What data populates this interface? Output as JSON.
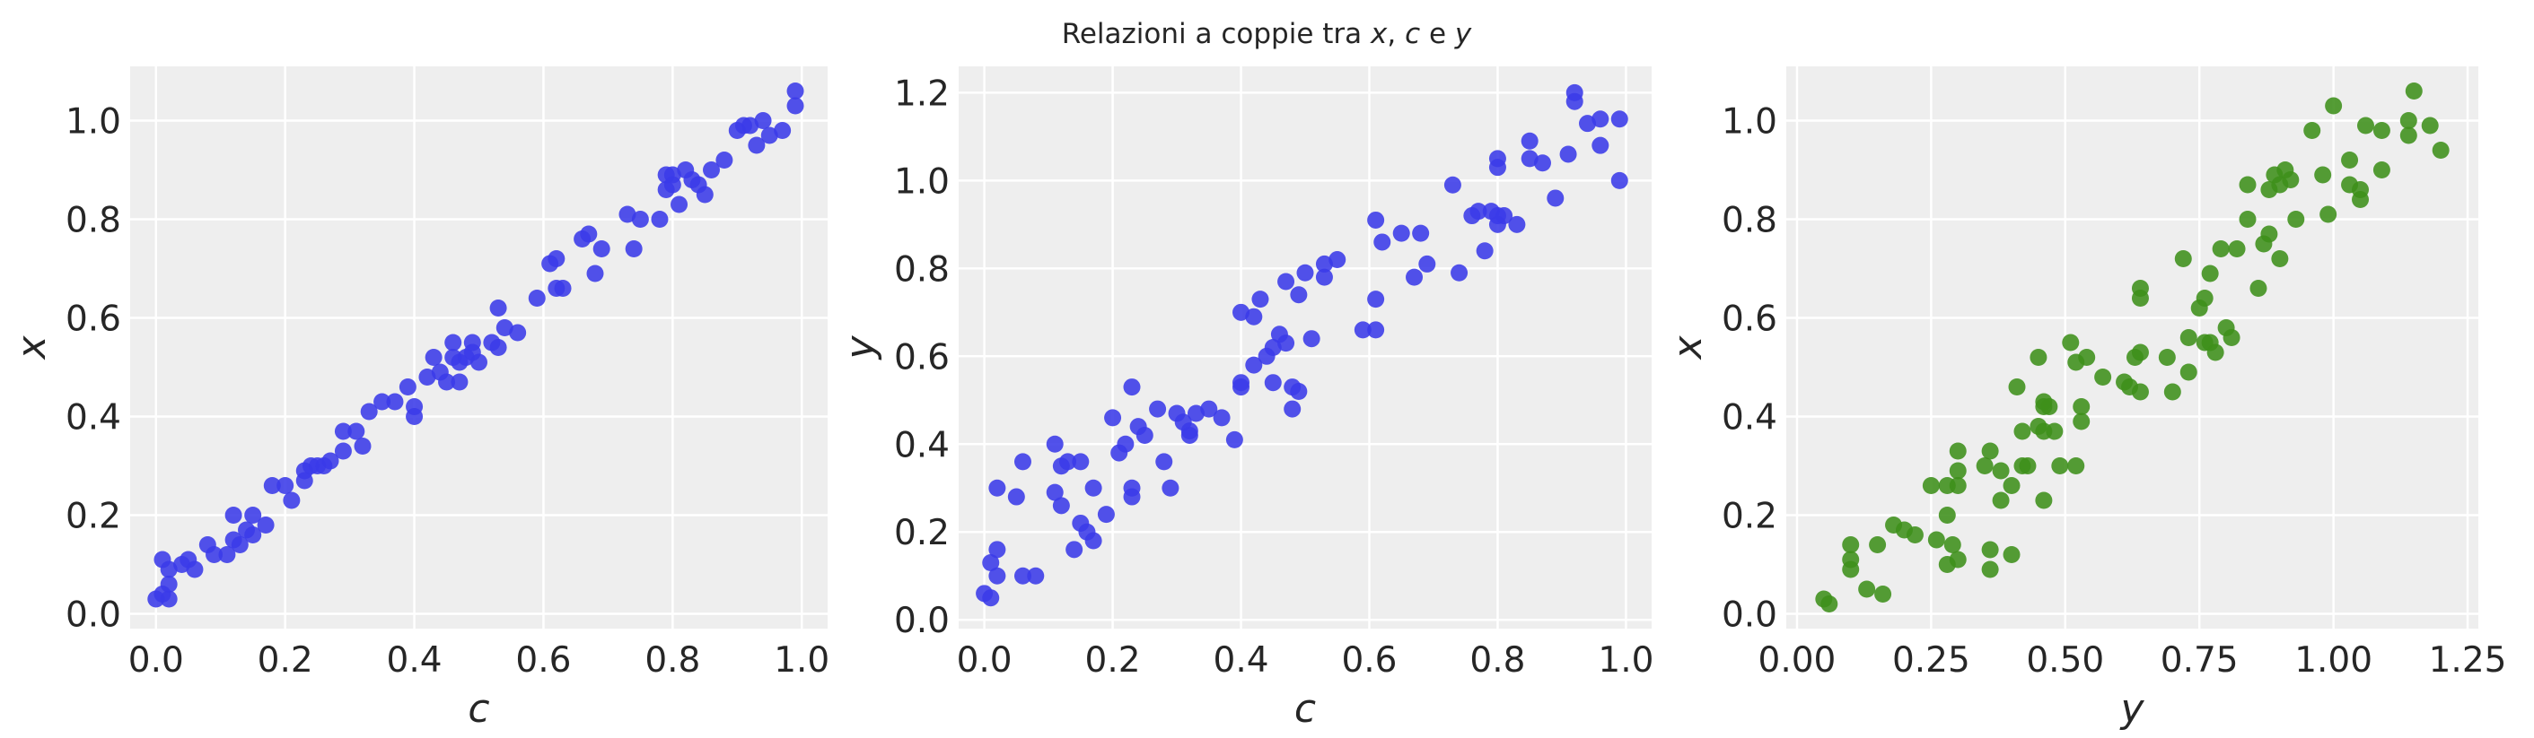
{
  "title": "Relazioni a coppie tra x, c e y",
  "title_parts": [
    "Relazioni a coppie tra ",
    "x",
    ", ",
    "c",
    " e ",
    "y"
  ],
  "colors": {
    "blue": "#3a3ae8",
    "green": "#3e8f1a",
    "panel_bg": "#eeeeee",
    "grid": "#ffffff"
  },
  "chart_data": [
    {
      "type": "scatter",
      "xlabel": "c",
      "ylabel": "x",
      "xlim": [
        -0.04,
        1.04
      ],
      "ylim": [
        -0.03,
        1.11
      ],
      "xticks": [
        0.0,
        0.2,
        0.4,
        0.6,
        0.8,
        1.0
      ],
      "xtick_labels": [
        "0.0",
        "0.2",
        "0.4",
        "0.6",
        "0.8",
        "1.0"
      ],
      "yticks": [
        0.0,
        0.2,
        0.4,
        0.6,
        0.8,
        1.0
      ],
      "ytick_labels": [
        "0.0",
        "0.2",
        "0.4",
        "0.6",
        "0.8",
        "1.0"
      ],
      "grid": true,
      "color": "#3a3ae8",
      "points": [
        [
          0.0,
          0.03
        ],
        [
          0.01,
          0.04
        ],
        [
          0.01,
          0.11
        ],
        [
          0.02,
          0.03
        ],
        [
          0.02,
          0.09
        ],
        [
          0.04,
          0.1
        ],
        [
          0.05,
          0.11
        ],
        [
          0.06,
          0.09
        ],
        [
          0.08,
          0.14
        ],
        [
          0.11,
          0.12
        ],
        [
          0.12,
          0.15
        ],
        [
          0.12,
          0.2
        ],
        [
          0.13,
          0.14
        ],
        [
          0.14,
          0.17
        ],
        [
          0.15,
          0.2
        ],
        [
          0.15,
          0.16
        ],
        [
          0.17,
          0.18
        ],
        [
          0.18,
          0.26
        ],
        [
          0.2,
          0.26
        ],
        [
          0.21,
          0.23
        ],
        [
          0.23,
          0.29
        ],
        [
          0.23,
          0.27
        ],
        [
          0.24,
          0.3
        ],
        [
          0.25,
          0.3
        ],
        [
          0.27,
          0.31
        ],
        [
          0.29,
          0.33
        ],
        [
          0.29,
          0.37
        ],
        [
          0.31,
          0.37
        ],
        [
          0.32,
          0.34
        ],
        [
          0.33,
          0.41
        ],
        [
          0.35,
          0.43
        ],
        [
          0.37,
          0.43
        ],
        [
          0.39,
          0.46
        ],
        [
          0.4,
          0.4
        ],
        [
          0.4,
          0.42
        ],
        [
          0.42,
          0.48
        ],
        [
          0.43,
          0.52
        ],
        [
          0.44,
          0.49
        ],
        [
          0.45,
          0.47
        ],
        [
          0.46,
          0.52
        ],
        [
          0.46,
          0.55
        ],
        [
          0.47,
          0.47
        ],
        [
          0.48,
          0.52
        ],
        [
          0.49,
          0.55
        ],
        [
          0.49,
          0.53
        ],
        [
          0.5,
          0.51
        ],
        [
          0.52,
          0.55
        ],
        [
          0.53,
          0.62
        ],
        [
          0.53,
          0.54
        ],
        [
          0.54,
          0.58
        ],
        [
          0.56,
          0.57
        ],
        [
          0.59,
          0.64
        ],
        [
          0.61,
          0.71
        ],
        [
          0.62,
          0.66
        ],
        [
          0.62,
          0.72
        ],
        [
          0.63,
          0.66
        ],
        [
          0.66,
          0.76
        ],
        [
          0.67,
          0.77
        ],
        [
          0.68,
          0.69
        ],
        [
          0.69,
          0.74
        ],
        [
          0.73,
          0.81
        ],
        [
          0.74,
          0.74
        ],
        [
          0.75,
          0.8
        ],
        [
          0.78,
          0.8
        ],
        [
          0.79,
          0.86
        ],
        [
          0.8,
          0.87
        ],
        [
          0.8,
          0.89
        ],
        [
          0.81,
          0.83
        ],
        [
          0.82,
          0.9
        ],
        [
          0.83,
          0.88
        ],
        [
          0.84,
          0.87
        ],
        [
          0.85,
          0.85
        ],
        [
          0.86,
          0.9
        ],
        [
          0.88,
          0.92
        ],
        [
          0.9,
          0.98
        ],
        [
          0.91,
          0.99
        ],
        [
          0.93,
          0.95
        ],
        [
          0.94,
          1.0
        ],
        [
          0.95,
          0.97
        ],
        [
          0.97,
          0.98
        ],
        [
          0.99,
          1.06
        ],
        [
          0.99,
          1.03
        ],
        [
          0.92,
          0.99
        ],
        [
          0.79,
          0.89
        ],
        [
          0.47,
          0.51
        ],
        [
          0.26,
          0.3
        ],
        [
          0.09,
          0.12
        ],
        [
          0.02,
          0.06
        ]
      ]
    },
    {
      "type": "scatter",
      "xlabel": "c",
      "ylabel": "y",
      "xlim": [
        -0.04,
        1.04
      ],
      "ylim": [
        -0.02,
        1.26
      ],
      "xticks": [
        0.0,
        0.2,
        0.4,
        0.6,
        0.8,
        1.0
      ],
      "xtick_labels": [
        "0.0",
        "0.2",
        "0.4",
        "0.6",
        "0.8",
        "1.0"
      ],
      "yticks": [
        0.0,
        0.2,
        0.4,
        0.6,
        0.8,
        1.0,
        1.2
      ],
      "ytick_labels": [
        "0.0",
        "0.2",
        "0.4",
        "0.6",
        "0.8",
        "1.0",
        "1.2"
      ],
      "grid": true,
      "color": "#3a3ae8",
      "points": [
        [
          0.0,
          0.06
        ],
        [
          0.01,
          0.05
        ],
        [
          0.01,
          0.13
        ],
        [
          0.02,
          0.1
        ],
        [
          0.02,
          0.16
        ],
        [
          0.02,
          0.3
        ],
        [
          0.05,
          0.28
        ],
        [
          0.06,
          0.1
        ],
        [
          0.06,
          0.36
        ],
        [
          0.08,
          0.1
        ],
        [
          0.11,
          0.4
        ],
        [
          0.11,
          0.29
        ],
        [
          0.12,
          0.26
        ],
        [
          0.12,
          0.35
        ],
        [
          0.14,
          0.16
        ],
        [
          0.15,
          0.22
        ],
        [
          0.15,
          0.36
        ],
        [
          0.16,
          0.2
        ],
        [
          0.17,
          0.3
        ],
        [
          0.17,
          0.18
        ],
        [
          0.19,
          0.24
        ],
        [
          0.2,
          0.46
        ],
        [
          0.21,
          0.38
        ],
        [
          0.22,
          0.4
        ],
        [
          0.23,
          0.28
        ],
        [
          0.23,
          0.53
        ],
        [
          0.23,
          0.3
        ],
        [
          0.24,
          0.44
        ],
        [
          0.25,
          0.42
        ],
        [
          0.27,
          0.48
        ],
        [
          0.28,
          0.36
        ],
        [
          0.29,
          0.3
        ],
        [
          0.3,
          0.47
        ],
        [
          0.31,
          0.45
        ],
        [
          0.32,
          0.42
        ],
        [
          0.32,
          0.43
        ],
        [
          0.33,
          0.47
        ],
        [
          0.35,
          0.48
        ],
        [
          0.37,
          0.46
        ],
        [
          0.39,
          0.41
        ],
        [
          0.4,
          0.54
        ],
        [
          0.4,
          0.53
        ],
        [
          0.4,
          0.7
        ],
        [
          0.42,
          0.58
        ],
        [
          0.42,
          0.69
        ],
        [
          0.43,
          0.73
        ],
        [
          0.44,
          0.6
        ],
        [
          0.45,
          0.54
        ],
        [
          0.45,
          0.62
        ],
        [
          0.46,
          0.65
        ],
        [
          0.47,
          0.77
        ],
        [
          0.48,
          0.53
        ],
        [
          0.48,
          0.48
        ],
        [
          0.49,
          0.52
        ],
        [
          0.49,
          0.74
        ],
        [
          0.5,
          0.79
        ],
        [
          0.51,
          0.64
        ],
        [
          0.53,
          0.78
        ],
        [
          0.53,
          0.81
        ],
        [
          0.55,
          0.82
        ],
        [
          0.59,
          0.66
        ],
        [
          0.61,
          0.66
        ],
        [
          0.61,
          0.73
        ],
        [
          0.61,
          0.91
        ],
        [
          0.62,
          0.86
        ],
        [
          0.65,
          0.88
        ],
        [
          0.67,
          0.78
        ],
        [
          0.68,
          0.88
        ],
        [
          0.69,
          0.81
        ],
        [
          0.73,
          0.99
        ],
        [
          0.74,
          0.79
        ],
        [
          0.76,
          0.92
        ],
        [
          0.77,
          0.93
        ],
        [
          0.78,
          0.84
        ],
        [
          0.79,
          0.93
        ],
        [
          0.8,
          1.03
        ],
        [
          0.8,
          0.92
        ],
        [
          0.8,
          0.9
        ],
        [
          0.81,
          0.92
        ],
        [
          0.83,
          0.9
        ],
        [
          0.85,
          1.09
        ],
        [
          0.85,
          1.05
        ],
        [
          0.87,
          1.04
        ],
        [
          0.89,
          0.96
        ],
        [
          0.91,
          1.06
        ],
        [
          0.92,
          1.2
        ],
        [
          0.92,
          1.18
        ],
        [
          0.94,
          1.13
        ],
        [
          0.96,
          1.08
        ],
        [
          0.96,
          1.14
        ],
        [
          0.99,
          1.0
        ],
        [
          0.99,
          1.14
        ],
        [
          0.8,
          1.05
        ],
        [
          0.47,
          0.63
        ],
        [
          0.13,
          0.36
        ]
      ]
    },
    {
      "type": "scatter",
      "xlabel": "y",
      "ylabel": "x",
      "xlim": [
        -0.02,
        1.27
      ],
      "ylim": [
        -0.03,
        1.11
      ],
      "xticks": [
        0.0,
        0.25,
        0.5,
        0.75,
        1.0,
        1.25
      ],
      "xtick_labels": [
        "0.00",
        "0.25",
        "0.50",
        "0.75",
        "1.00",
        "1.25"
      ],
      "yticks": [
        0.0,
        0.2,
        0.4,
        0.6,
        0.8,
        1.0
      ],
      "ytick_labels": [
        "0.0",
        "0.2",
        "0.4",
        "0.6",
        "0.8",
        "1.0"
      ],
      "grid": true,
      "color": "#3e8f1a",
      "points": [
        [
          0.05,
          0.03
        ],
        [
          0.06,
          0.02
        ],
        [
          0.1,
          0.14
        ],
        [
          0.1,
          0.11
        ],
        [
          0.1,
          0.09
        ],
        [
          0.13,
          0.05
        ],
        [
          0.15,
          0.14
        ],
        [
          0.16,
          0.04
        ],
        [
          0.18,
          0.18
        ],
        [
          0.2,
          0.17
        ],
        [
          0.22,
          0.16
        ],
        [
          0.25,
          0.26
        ],
        [
          0.26,
          0.15
        ],
        [
          0.28,
          0.26
        ],
        [
          0.28,
          0.2
        ],
        [
          0.28,
          0.1
        ],
        [
          0.29,
          0.14
        ],
        [
          0.3,
          0.33
        ],
        [
          0.3,
          0.11
        ],
        [
          0.3,
          0.29
        ],
        [
          0.3,
          0.26
        ],
        [
          0.35,
          0.3
        ],
        [
          0.36,
          0.09
        ],
        [
          0.36,
          0.13
        ],
        [
          0.36,
          0.33
        ],
        [
          0.38,
          0.29
        ],
        [
          0.38,
          0.23
        ],
        [
          0.4,
          0.12
        ],
        [
          0.4,
          0.26
        ],
        [
          0.41,
          0.46
        ],
        [
          0.42,
          0.3
        ],
        [
          0.42,
          0.37
        ],
        [
          0.43,
          0.3
        ],
        [
          0.45,
          0.52
        ],
        [
          0.45,
          0.38
        ],
        [
          0.46,
          0.42
        ],
        [
          0.46,
          0.37
        ],
        [
          0.46,
          0.23
        ],
        [
          0.47,
          0.42
        ],
        [
          0.48,
          0.37
        ],
        [
          0.49,
          0.3
        ],
        [
          0.51,
          0.55
        ],
        [
          0.52,
          0.51
        ],
        [
          0.52,
          0.3
        ],
        [
          0.53,
          0.42
        ],
        [
          0.53,
          0.39
        ],
        [
          0.54,
          0.52
        ],
        [
          0.57,
          0.48
        ],
        [
          0.61,
          0.47
        ],
        [
          0.62,
          0.46
        ],
        [
          0.63,
          0.52
        ],
        [
          0.64,
          0.53
        ],
        [
          0.64,
          0.66
        ],
        [
          0.64,
          0.64
        ],
        [
          0.69,
          0.52
        ],
        [
          0.7,
          0.45
        ],
        [
          0.72,
          0.72
        ],
        [
          0.73,
          0.56
        ],
        [
          0.73,
          0.49
        ],
        [
          0.75,
          0.62
        ],
        [
          0.76,
          0.55
        ],
        [
          0.77,
          0.55
        ],
        [
          0.77,
          0.69
        ],
        [
          0.78,
          0.53
        ],
        [
          0.79,
          0.74
        ],
        [
          0.8,
          0.58
        ],
        [
          0.81,
          0.56
        ],
        [
          0.82,
          0.74
        ],
        [
          0.84,
          0.87
        ],
        [
          0.84,
          0.8
        ],
        [
          0.86,
          0.66
        ],
        [
          0.87,
          0.75
        ],
        [
          0.88,
          0.77
        ],
        [
          0.88,
          0.86
        ],
        [
          0.89,
          0.89
        ],
        [
          0.9,
          0.72
        ],
        [
          0.9,
          0.87
        ],
        [
          0.91,
          0.9
        ],
        [
          0.92,
          0.88
        ],
        [
          0.93,
          0.8
        ],
        [
          0.96,
          0.98
        ],
        [
          0.98,
          0.89
        ],
        [
          0.99,
          0.81
        ],
        [
          1.0,
          1.03
        ],
        [
          1.03,
          0.87
        ],
        [
          1.03,
          0.92
        ],
        [
          1.05,
          0.84
        ],
        [
          1.05,
          0.86
        ],
        [
          1.06,
          0.99
        ],
        [
          1.09,
          0.98
        ],
        [
          1.09,
          0.9
        ],
        [
          1.14,
          1.0
        ],
        [
          1.14,
          0.97
        ],
        [
          1.15,
          1.06
        ],
        [
          1.18,
          0.99
        ],
        [
          1.2,
          0.94
        ],
        [
          0.76,
          0.64
        ],
        [
          0.64,
          0.45
        ],
        [
          0.46,
          0.43
        ]
      ]
    }
  ]
}
